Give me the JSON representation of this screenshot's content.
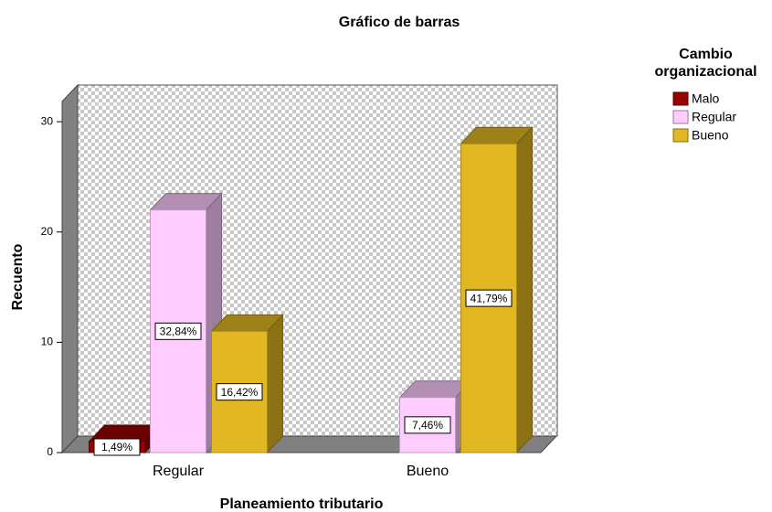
{
  "chart_data": {
    "type": "bar3d",
    "title": "Gráfico de barras",
    "x_label": "Planeamiento tributario",
    "y_label": "Recuento",
    "legend_title": "Cambio organizacional",
    "categories": [
      "Regular",
      "Bueno"
    ],
    "series": [
      {
        "name": "Malo",
        "color": "#990000",
        "values": [
          1,
          null
        ],
        "value_labels": [
          "1,49%",
          null
        ]
      },
      {
        "name": "Regular",
        "color": "#ffccff",
        "values": [
          22,
          5
        ],
        "value_labels": [
          "32,84%",
          "7,46%"
        ]
      },
      {
        "name": "Bueno",
        "color": "#e2b822",
        "values": [
          11,
          28
        ],
        "value_labels": [
          "16,42%",
          "41,79%"
        ]
      }
    ],
    "ylim": [
      0,
      32
    ],
    "yticks": [
      0,
      10,
      20,
      30
    ],
    "grid": true,
    "legend": "right"
  }
}
